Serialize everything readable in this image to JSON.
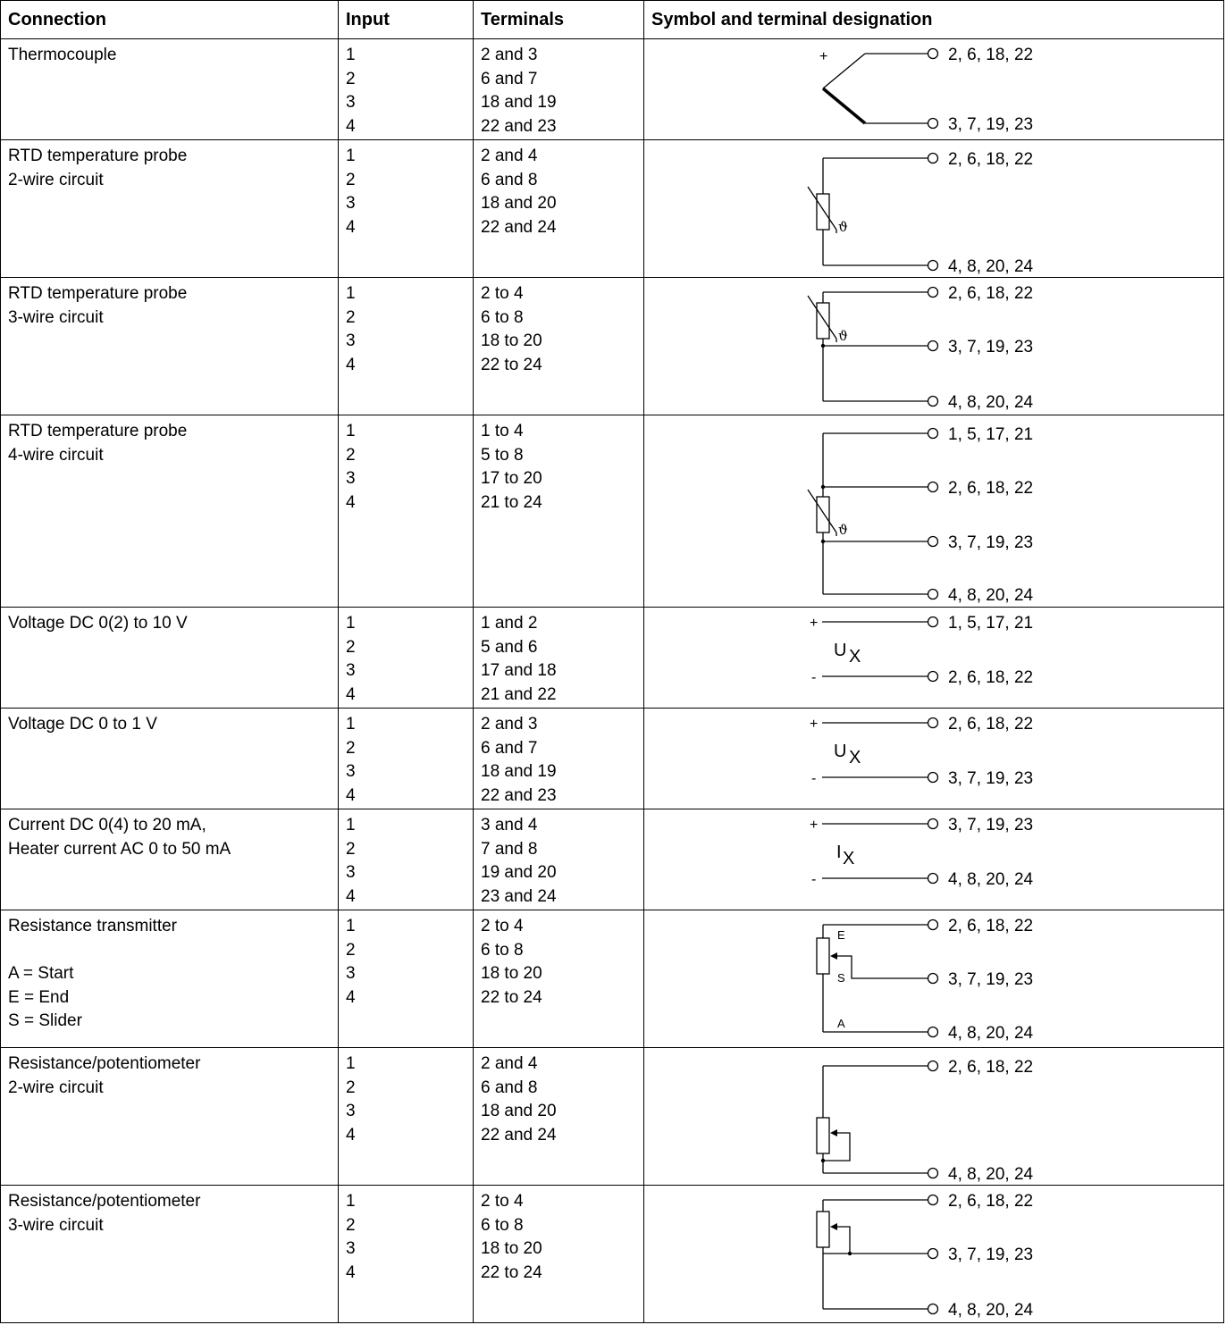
{
  "headers": {
    "connection": "Connection",
    "input": "Input",
    "terminals": "Terminals",
    "symbol": "Symbol and terminal designation"
  },
  "rows": [
    {
      "connection": [
        "Thermocouple"
      ],
      "inputs": [
        "1",
        "2",
        "3",
        "4"
      ],
      "terminals": [
        "2 and 3",
        "6 and 7",
        "18 and 19",
        "22 and 23"
      ],
      "plus_sign": "+",
      "minus_sign": "−",
      "labels": [
        "2, 6, 18, 22",
        "3, 7, 19, 23"
      ]
    },
    {
      "connection": [
        "RTD temperature probe",
        "2-wire circuit"
      ],
      "inputs": [
        "1",
        "2",
        "3",
        "4"
      ],
      "terminals": [
        "2 and 4",
        "6 and 8",
        "18 and 20",
        "22 and 24"
      ],
      "theta": "ϑ",
      "labels": [
        "2, 6, 18, 22",
        "4, 8, 20, 24"
      ]
    },
    {
      "connection": [
        "RTD temperature probe",
        "3-wire circuit"
      ],
      "inputs": [
        "1",
        "2",
        "3",
        "4"
      ],
      "terminals": [
        "2 to 4",
        "6 to 8",
        "18 to 20",
        "22 to 24"
      ],
      "theta": "ϑ",
      "labels": [
        "2, 6, 18, 22",
        "3, 7, 19, 23",
        "4, 8, 20, 24"
      ]
    },
    {
      "connection": [
        "RTD temperature probe",
        "4-wire circuit"
      ],
      "inputs": [
        "1",
        "2",
        "3",
        "4"
      ],
      "terminals": [
        "1 to 4",
        "5 to 8",
        "17 to 20",
        "21 to 24"
      ],
      "theta": "ϑ",
      "labels": [
        "1, 5, 17, 21",
        "2, 6, 18, 22",
        "3, 7, 19, 23",
        "4, 8, 20, 24"
      ]
    },
    {
      "connection": [
        "Voltage DC 0(2) to 10 V"
      ],
      "inputs": [
        "1",
        "2",
        "3",
        "4"
      ],
      "terminals": [
        "1 and 2",
        "5 and 6",
        "17 and 18",
        "21 and 22"
      ],
      "plus_sign": "+",
      "minus_sign": "-",
      "variable": "U",
      "variable_sub": "X",
      "labels": [
        "1, 5, 17, 21",
        "2, 6, 18, 22"
      ]
    },
    {
      "connection": [
        "Voltage DC 0 to 1 V"
      ],
      "inputs": [
        "1",
        "2",
        "3",
        "4"
      ],
      "terminals": [
        "2 and 3",
        "6 and 7",
        "18 and 19",
        "22 and 23"
      ],
      "plus_sign": "+",
      "minus_sign": "-",
      "variable": "U",
      "variable_sub": "X",
      "labels": [
        "2, 6, 18, 22",
        "3, 7, 19, 23"
      ]
    },
    {
      "connection": [
        "Current DC 0(4) to 20 mA,",
        "Heater current AC 0 to 50 mA"
      ],
      "inputs": [
        "1",
        "2",
        "3",
        "4"
      ],
      "terminals": [
        "3 and 4",
        "7 and 8",
        "19 and 20",
        "23 and 24"
      ],
      "plus_sign": "+",
      "minus_sign": "-",
      "variable": "I",
      "variable_sub": "X",
      "labels": [
        "3, 7, 19, 23",
        "4, 8, 20, 24"
      ]
    },
    {
      "connection": [
        "Resistance transmitter",
        "",
        "A = Start",
        "E = End",
        "S = Slider"
      ],
      "inputs": [
        "1",
        "2",
        "3",
        "4"
      ],
      "terminals": [
        "2 to 4",
        "6 to 8",
        "18 to 20",
        "22 to 24"
      ],
      "letters": [
        "E",
        "S",
        "A"
      ],
      "labels": [
        "2, 6, 18, 22",
        "3, 7, 19, 23",
        "4, 8, 20, 24"
      ]
    },
    {
      "connection": [
        "Resistance/potentiometer",
        "2-wire circuit"
      ],
      "inputs": [
        "1",
        "2",
        "3",
        "4"
      ],
      "terminals": [
        "2 and 4",
        "6 and 8",
        "18 and 20",
        "22 and 24"
      ],
      "labels": [
        "2, 6, 18, 22",
        "4, 8, 20, 24"
      ]
    },
    {
      "connection": [
        "Resistance/potentiometer",
        "3-wire circuit"
      ],
      "inputs": [
        "1",
        "2",
        "3",
        "4"
      ],
      "terminals": [
        "2 to 4",
        "6 to 8",
        "18 to 20",
        "22 to 24"
      ],
      "labels": [
        "2, 6, 18, 22",
        "3, 7, 19, 23",
        "4, 8, 20, 24"
      ]
    }
  ]
}
